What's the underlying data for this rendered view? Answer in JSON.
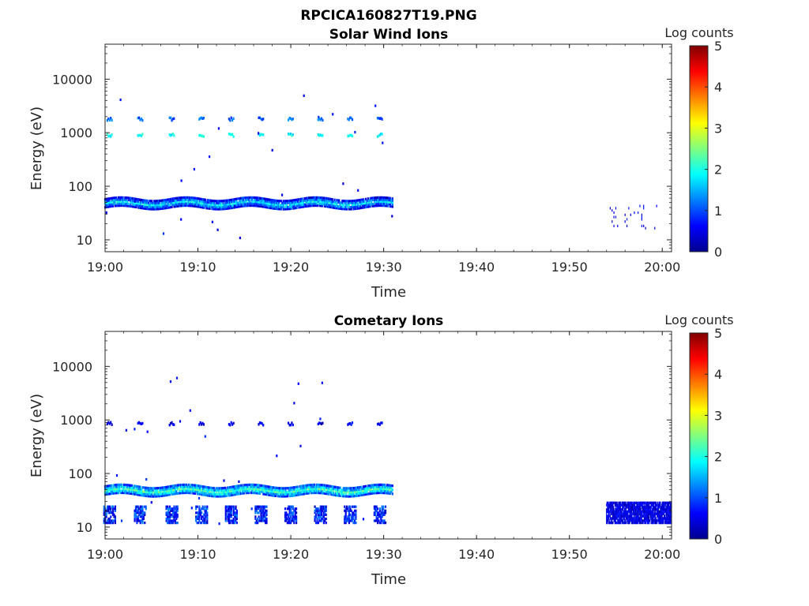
{
  "figure": {
    "title": "RPCICA160827T19.PNG"
  },
  "chart_data": [
    {
      "type": "heatmap",
      "title": "Solar Wind Ions",
      "xlabel": "Time",
      "ylabel": "Energy (eV)",
      "x_ticks": [
        "19:00",
        "19:10",
        "19:20",
        "19:30",
        "19:40",
        "19:50",
        "20:00"
      ],
      "xlim": [
        "19:00",
        "20:01"
      ],
      "y_scale": "log",
      "y_ticks": [
        10,
        100,
        1000,
        10000
      ],
      "ylim": [
        6,
        45000
      ],
      "colorbar": {
        "label": "Log counts",
        "range": [
          0,
          5
        ],
        "ticks": [
          0,
          1,
          2,
          3,
          4,
          5
        ],
        "colormap": "jet"
      },
      "features": [
        {
          "time_range": [
            "19:00",
            "19:31"
          ],
          "energy_range": [
            40,
            60
          ],
          "log_counts_range": [
            0.3,
            2.2
          ],
          "description": "main band"
        },
        {
          "times": [
            "19:00.5",
            "19:03.8",
            "19:07.2",
            "19:10.4",
            "19:13.6",
            "19:16.8",
            "19:20",
            "19:23.2",
            "19:26.4",
            "19:29.6"
          ],
          "energy": 900,
          "log_counts": 1.9
        },
        {
          "times": [
            "19:00.5",
            "19:03.8",
            "19:07.2",
            "19:10.4",
            "19:13.6",
            "19:16.8",
            "19:20",
            "19:23.2",
            "19:26.4",
            "19:29.6"
          ],
          "energy": 1800,
          "log_counts": 1.1
        },
        {
          "time_range": [
            "19:54",
            "20:00"
          ],
          "energy_range": [
            15,
            45
          ],
          "log_counts_range": [
            0.3,
            0.8
          ],
          "description": "sparse late counts"
        }
      ]
    },
    {
      "type": "heatmap",
      "title": "Cometary Ions",
      "xlabel": "Time",
      "ylabel": "Energy (eV)",
      "x_ticks": [
        "19:00",
        "19:10",
        "19:20",
        "19:30",
        "19:40",
        "19:50",
        "20:00"
      ],
      "xlim": [
        "19:00",
        "20:01"
      ],
      "y_scale": "log",
      "y_ticks": [
        10,
        100,
        1000,
        10000
      ],
      "ylim": [
        6,
        45000
      ],
      "colorbar": {
        "label": "Log counts",
        "range": [
          0,
          5
        ],
        "ticks": [
          0,
          1,
          2,
          3,
          4,
          5
        ],
        "colormap": "jet"
      },
      "features": [
        {
          "time_range": [
            "19:00",
            "19:31"
          ],
          "energy_range": [
            40,
            60
          ],
          "log_counts_range": [
            0.4,
            2.6
          ],
          "description": "main band"
        },
        {
          "times": [
            "19:00.5",
            "19:03.8",
            "19:07.2",
            "19:10.4",
            "19:13.6",
            "19:16.8",
            "19:20",
            "19:23.2",
            "19:26.4",
            "19:29.6"
          ],
          "energy_range": [
            12,
            25
          ],
          "log_counts_range": [
            0.3,
            1.3
          ],
          "description": "low-energy bursts"
        },
        {
          "times": [
            "19:00.5",
            "19:03.8",
            "19:07.2",
            "19:10.4",
            "19:13.6",
            "19:16.8",
            "19:20",
            "19:23.2",
            "19:26.4",
            "19:29.6"
          ],
          "energy": 850,
          "log_counts": 0.5
        },
        {
          "time_range": [
            "19:54",
            "20:01"
          ],
          "energy_range": [
            12,
            30
          ],
          "log_counts_range": [
            0.2,
            0.8
          ],
          "description": "dense late band"
        }
      ]
    }
  ]
}
